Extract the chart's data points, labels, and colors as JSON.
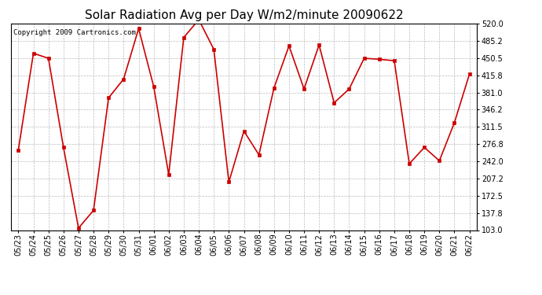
{
  "title": "Solar Radiation Avg per Day W/m2/minute 20090622",
  "copyright": "Copyright 2009 Cartronics.com",
  "labels": [
    "05/23",
    "05/24",
    "05/25",
    "05/26",
    "05/27",
    "05/28",
    "05/29",
    "05/30",
    "05/31",
    "06/01",
    "06/02",
    "06/03",
    "06/04",
    "06/05",
    "06/06",
    "06/07",
    "06/08",
    "06/09",
    "06/10",
    "06/11",
    "06/12",
    "06/13",
    "06/14",
    "06/15",
    "06/16",
    "06/17",
    "06/18",
    "06/19",
    "06/20",
    "06/21",
    "06/22"
  ],
  "values": [
    265,
    460,
    450,
    270,
    107,
    143,
    370,
    408,
    510,
    393,
    215,
    492,
    528,
    468,
    200,
    303,
    255,
    390,
    475,
    388,
    477,
    360,
    388,
    450,
    448,
    445,
    237,
    270,
    243,
    320,
    418
  ],
  "line_color": "#cc0000",
  "marker_color": "#cc0000",
  "bg_color": "#ffffff",
  "plot_bg_color": "#ffffff",
  "grid_color": "#aaaaaa",
  "ylim_min": 103.0,
  "ylim_max": 520.0,
  "yticks": [
    103.0,
    137.8,
    172.5,
    207.2,
    242.0,
    276.8,
    311.5,
    346.2,
    381.0,
    415.8,
    450.5,
    485.2,
    520.0
  ],
  "title_fontsize": 11,
  "copyright_fontsize": 6.5,
  "tick_fontsize": 7
}
